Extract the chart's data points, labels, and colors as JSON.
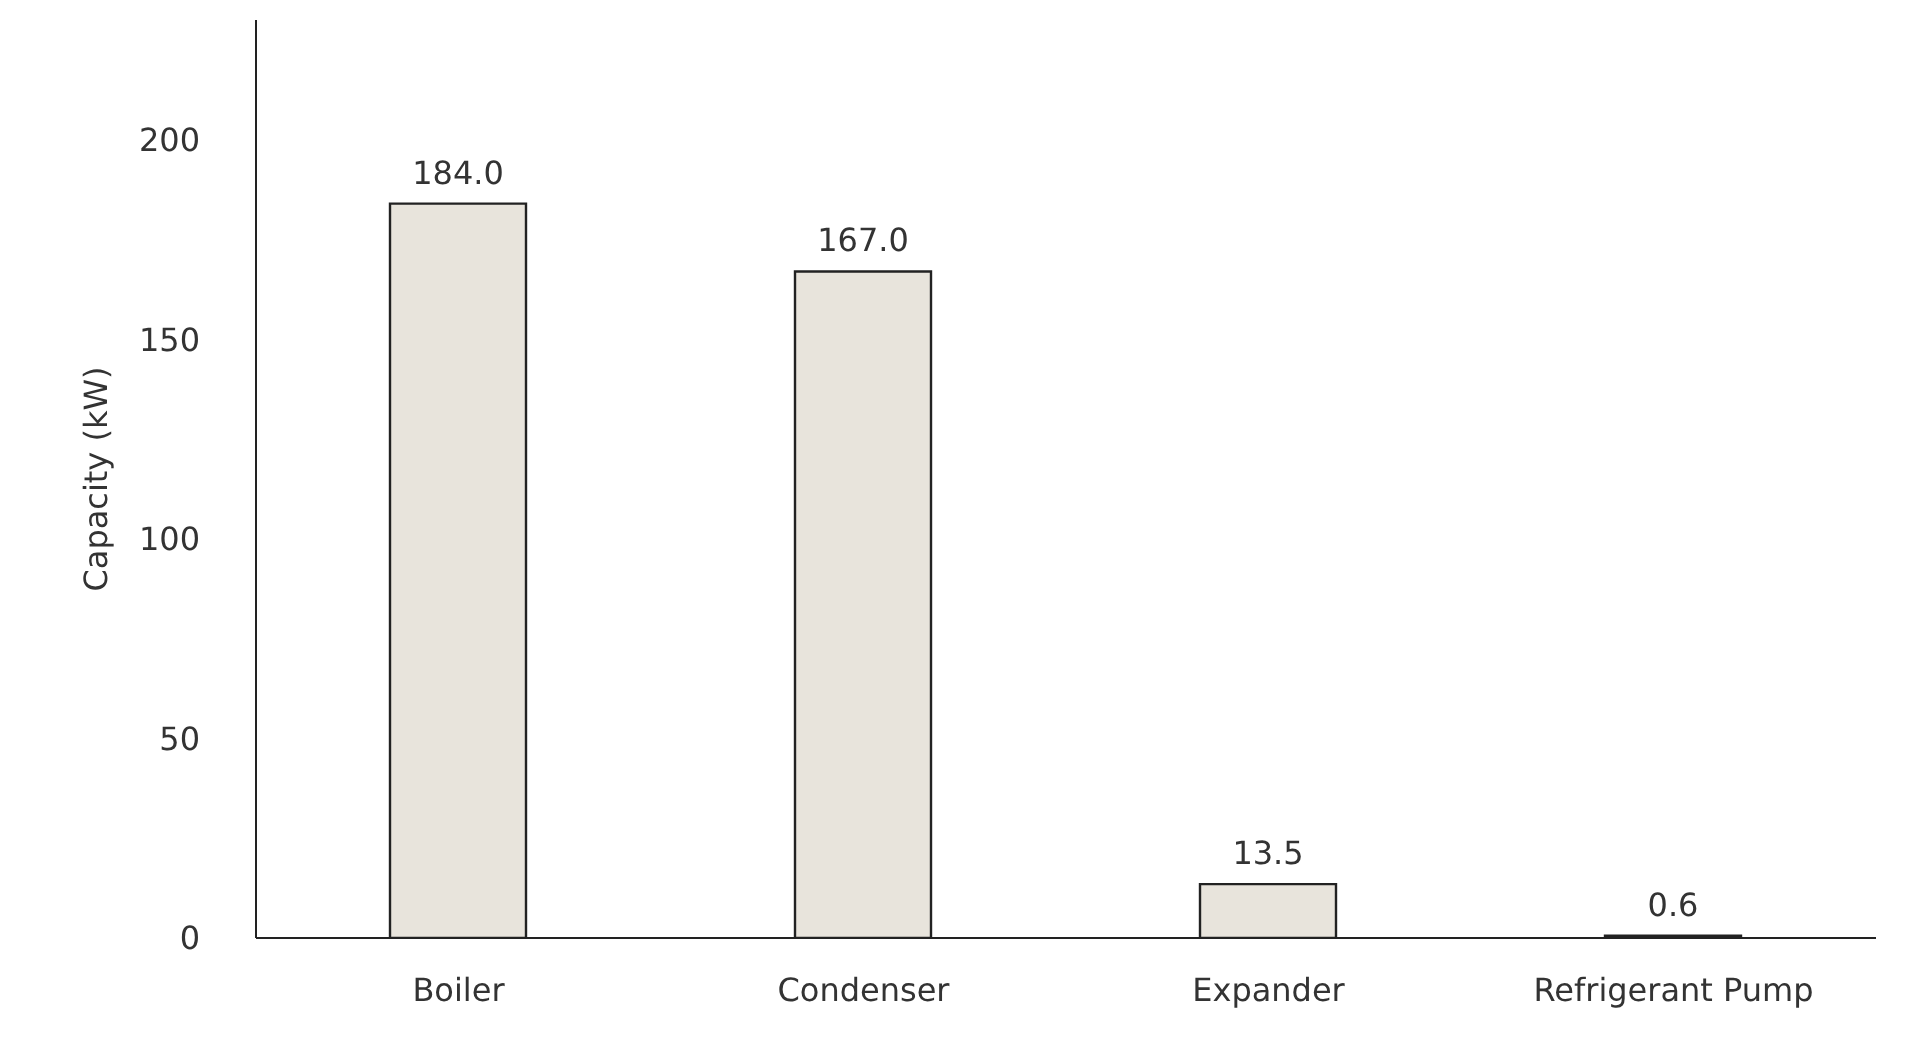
{
  "chart_data": {
    "type": "bar",
    "ylabel": "Capacity (kW)",
    "categories": [
      "Boiler",
      "Condenser",
      "Expander",
      "Refrigerant Pump"
    ],
    "values": [
      184.0,
      167.0,
      13.5,
      0.6
    ],
    "value_labels": [
      "184.0",
      "167.0",
      "13.5",
      "0.6"
    ],
    "color": "#e8e4dc",
    "ylim": [
      0,
      230
    ],
    "yticks": [
      0,
      50,
      100,
      150,
      200
    ],
    "grid": false
  }
}
